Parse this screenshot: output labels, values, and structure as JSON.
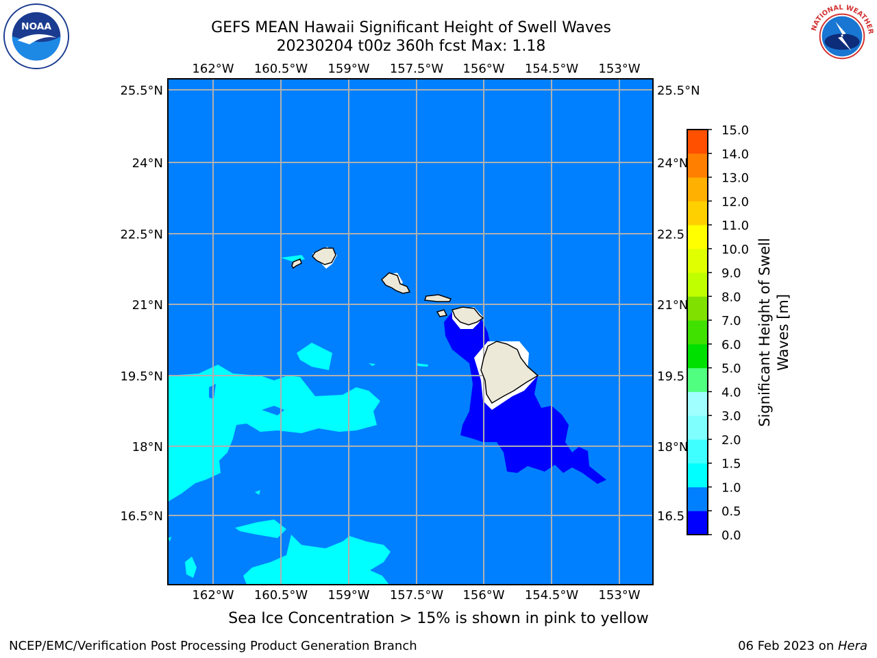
{
  "header": {
    "title_line1": "GEFS MEAN Hawaii Significant Height of Swell Waves",
    "title_line2": "20230204 t00z 360h fcst   Max: 1.18"
  },
  "map": {
    "lon_ticks": [
      "162°W",
      "160.5°W",
      "159°W",
      "157.5°W",
      "156°W",
      "154.5°W",
      "153°W"
    ],
    "lat_ticks": [
      "25.5°N",
      "24°N",
      "22.5°N",
      "21°N",
      "19.5°N",
      "18°N",
      "16.5°N"
    ],
    "lat_ticks_right": [
      "25.5°N",
      "24°N",
      "22.5",
      "21°N",
      "19.5",
      "18°N",
      "16.5"
    ],
    "ocean_color": "#0080ff",
    "land_color": "#ede9d9"
  },
  "colorbar": {
    "label_line1": "Significant Height of Swell",
    "label_line2": "Waves [m]",
    "levels": [
      "0.0",
      "0.5",
      "1.0",
      "1.5",
      "2.0",
      "3.0",
      "4.0",
      "5.0",
      "6.0",
      "7.0",
      "8.0",
      "9.0",
      "10.0",
      "11.0",
      "12.0",
      "13.0",
      "14.0",
      "15.0"
    ],
    "colors": [
      "#0000ff",
      "#0080ff",
      "#00ffff",
      "#40ffff",
      "#80ffff",
      "#a0ffff",
      "#50ff80",
      "#00e000",
      "#40e000",
      "#80e000",
      "#c0ff00",
      "#e0ff00",
      "#ffff00",
      "#ffd000",
      "#ffb000",
      "#ff8000",
      "#ff5000",
      "#ff2000",
      "#ff0000"
    ]
  },
  "bottom_note": "Sea Ice Concentration > 15% is shown in pink to yellow",
  "footer": {
    "left": "NCEP/EMC/Verification Post Processing Product Generation Branch",
    "right_prefix": "06 Feb 2023 on ",
    "right_host": "Hera"
  },
  "logos": {
    "noaa_text": "NOAA",
    "nws_text": "NATIONAL WEATHER SERVICE"
  }
}
